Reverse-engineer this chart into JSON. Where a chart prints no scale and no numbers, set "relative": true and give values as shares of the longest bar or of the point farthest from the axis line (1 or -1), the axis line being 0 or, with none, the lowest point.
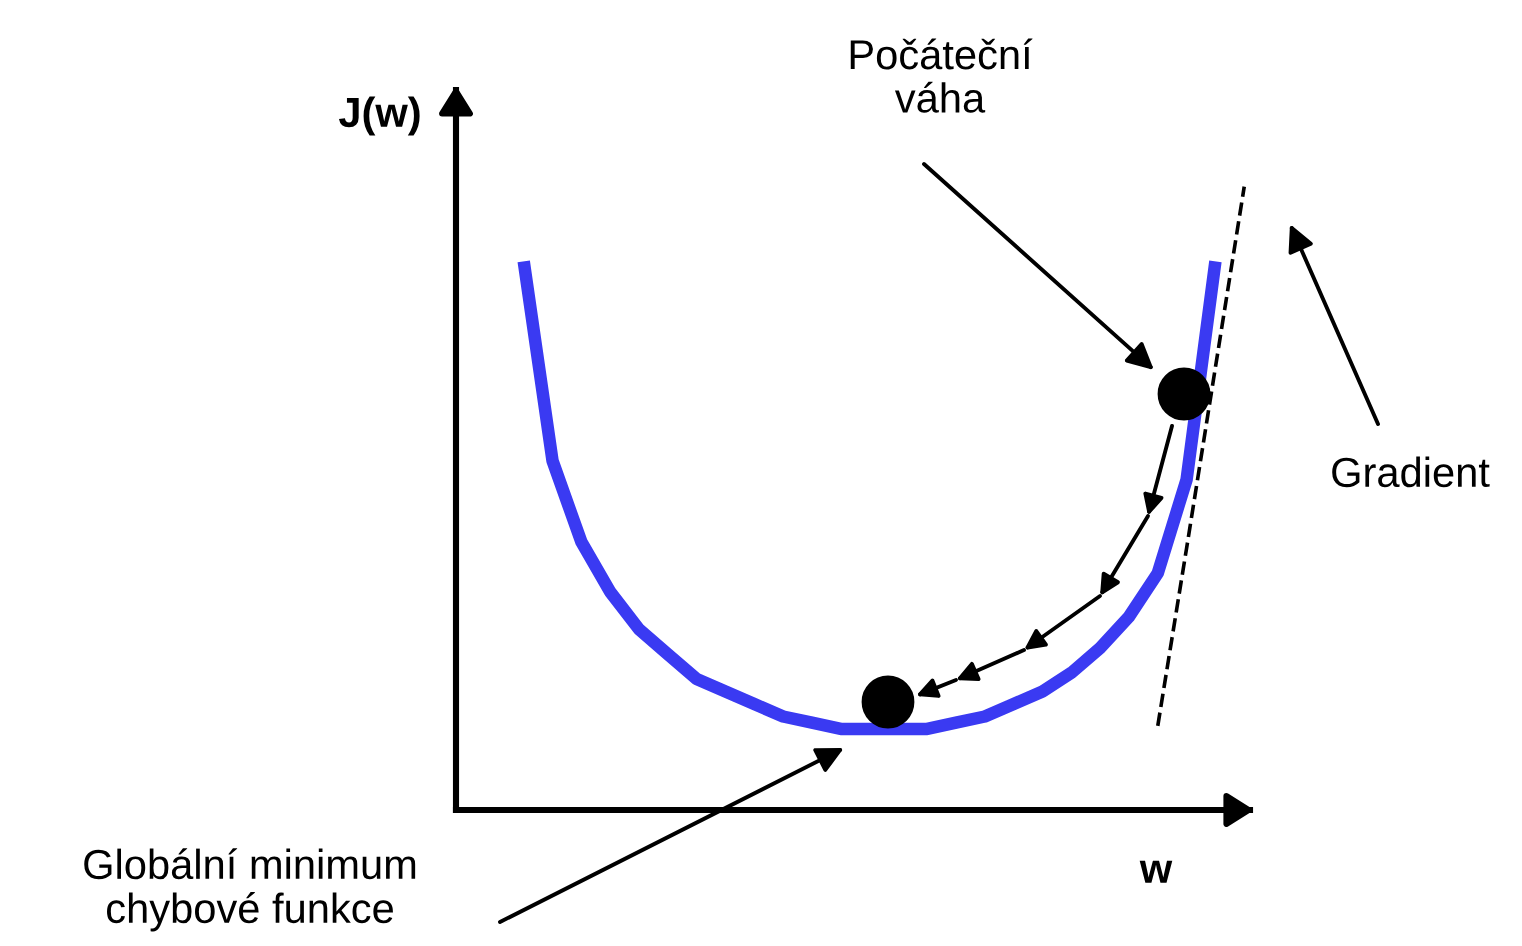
{
  "chart_data": {
    "type": "line",
    "relative": true,
    "xlabel": "w",
    "ylabel": "J(w)",
    "categories": [
      null,
      null,
      null,
      null,
      null,
      null,
      null,
      null,
      null,
      null,
      null,
      null,
      null,
      null,
      null,
      null,
      null,
      null,
      null,
      null,
      null,
      null,
      null,
      null,
      null,
      null
    ],
    "series": [
      {
        "color": "#3a3af2",
        "values": [
          0.88,
          0.56,
          0.43,
          0.35,
          0.29,
          0.25,
          0.21,
          0.19,
          0.17,
          0.15,
          0.14,
          0.13,
          0.13,
          0.13,
          0.13,
          0.14,
          0.15,
          0.17,
          0.19,
          0.22,
          0.26,
          0.31,
          0.38,
          0.53,
          0.88,
          null
        ]
      },
      {
        "color": "#000000",
        "line_style": "dashed",
        "values": [
          null,
          null,
          null,
          null,
          null,
          null,
          null,
          null,
          null,
          null,
          null,
          null,
          null,
          null,
          null,
          null,
          null,
          null,
          null,
          null,
          null,
          null,
          0.135,
          0.42,
          0.71,
          1
        ]
      }
    ],
    "annotations": [
      "Počáteční\nváha",
      "Gradient",
      "Globální minimum\nchybové funkce"
    ],
    "marker": "none",
    "line_style": "solid",
    "grid": false
  }
}
